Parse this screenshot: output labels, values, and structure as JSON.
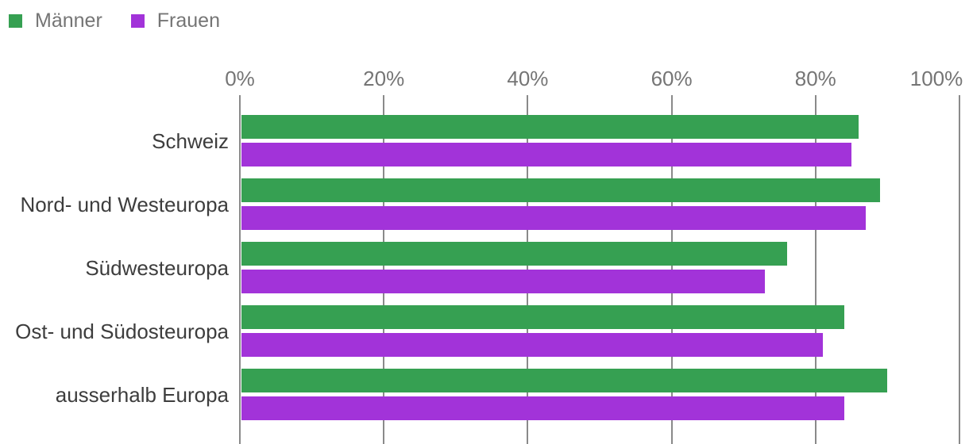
{
  "legend": {
    "items": [
      {
        "label": "Männer",
        "color": "#36a052"
      },
      {
        "label": "Frauen",
        "color": "#a233d9"
      }
    ]
  },
  "chart_data": {
    "type": "bar",
    "orientation": "horizontal",
    "title": "",
    "xlabel": "",
    "ylabel": "",
    "categories": [
      "Schweiz",
      "Nord- und Westeuropa",
      "Südwesteuropa",
      "Ost- und Südosteuropa",
      "ausserhalb Europa"
    ],
    "series": [
      {
        "name": "Männer",
        "color": "#36a052",
        "values": [
          86,
          89,
          76,
          84,
          90
        ]
      },
      {
        "name": "Frauen",
        "color": "#a233d9",
        "values": [
          85,
          87,
          73,
          81,
          84
        ]
      }
    ],
    "x_axis": {
      "position": "top",
      "tick_labels": [
        "0%",
        "20%",
        "40%",
        "60%",
        "80%",
        "100%"
      ],
      "tick_values": [
        0,
        20,
        40,
        60,
        80,
        100
      ],
      "unit": "%"
    },
    "xlim": [
      0,
      100
    ],
    "grid": true,
    "legend_position": "top-left"
  },
  "colors": {
    "background": "#ffffff",
    "gridline": "#8a8a8a",
    "axis_text": "#757575",
    "category_text": "#3d3d3d",
    "legend_text": "#757575"
  }
}
